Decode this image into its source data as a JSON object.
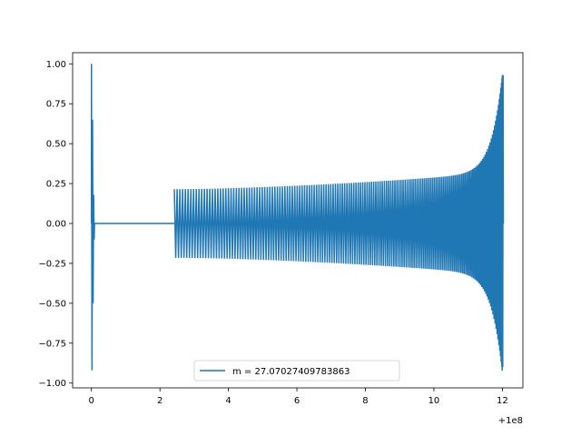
{
  "chart_data": {
    "type": "line",
    "title": "",
    "xlabel": "",
    "ylabel": "",
    "x_offset_label": "+1e8",
    "xlim": [
      -0.55,
      12.6
    ],
    "ylim": [
      -1.03,
      1.07
    ],
    "xticks": [
      {
        "value": 0,
        "label": "0"
      },
      {
        "value": 2,
        "label": "2"
      },
      {
        "value": 4,
        "label": "4"
      },
      {
        "value": 6,
        "label": "6"
      },
      {
        "value": 8,
        "label": "8"
      },
      {
        "value": 10,
        "label": "10"
      },
      {
        "value": 12,
        "label": "12"
      }
    ],
    "yticks": [
      {
        "value": 1.0,
        "label": "1.00"
      },
      {
        "value": 0.75,
        "label": "0.75"
      },
      {
        "value": 0.5,
        "label": "0.50"
      },
      {
        "value": 0.25,
        "label": "0.25"
      },
      {
        "value": 0.0,
        "label": "0.00"
      },
      {
        "value": -0.25,
        "label": "−0.25"
      },
      {
        "value": -0.5,
        "label": "−0.50"
      },
      {
        "value": -0.75,
        "label": "−0.75"
      },
      {
        "value": -1.0,
        "label": "−1.00"
      }
    ],
    "grid": false,
    "legend_position": "lower center",
    "series": [
      {
        "name": "m = 27.07027409783863",
        "color": "#1f77b4",
        "segments": [
          {
            "kind": "spike",
            "x": 0.0,
            "ymin": -0.92,
            "ymax": 1.0
          },
          {
            "kind": "flat",
            "x_start": 0.0,
            "x_end": 2.42,
            "y": 0.0
          },
          {
            "kind": "oscillation",
            "x_start": 2.42,
            "x_end": 12.0,
            "amp_start": 0.215,
            "amp_mid": 0.32,
            "amp_end": 0.93,
            "cycles": 160
          }
        ]
      }
    ]
  }
}
